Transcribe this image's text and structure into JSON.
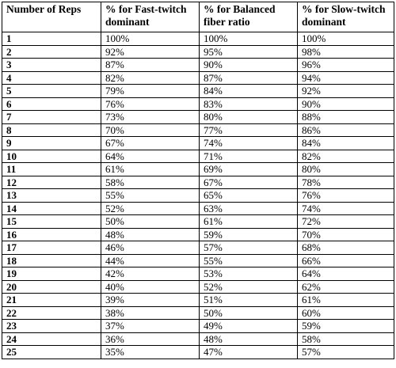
{
  "table": {
    "headers": [
      "Number of Reps",
      "% for Fast-twitch dominant",
      "% for Balanced fiber ratio",
      "% for Slow-twitch dominant"
    ],
    "rows": [
      [
        "1",
        "100%",
        "100%",
        "100%"
      ],
      [
        "2",
        "92%",
        "95%",
        "98%"
      ],
      [
        "3",
        "87%",
        "90%",
        "96%"
      ],
      [
        "4",
        "82%",
        "87%",
        "94%"
      ],
      [
        "5",
        "79%",
        "84%",
        "92%"
      ],
      [
        "6",
        "76%",
        "83%",
        "90%"
      ],
      [
        "7",
        "73%",
        "80%",
        "88%"
      ],
      [
        "8",
        "70%",
        "77%",
        "86%"
      ],
      [
        "9",
        "67%",
        "74%",
        "84%"
      ],
      [
        "10",
        "64%",
        "71%",
        "82%"
      ],
      [
        "11",
        "61%",
        "69%",
        "80%"
      ],
      [
        "12",
        "58%",
        "67%",
        "78%"
      ],
      [
        "13",
        "55%",
        "65%",
        "76%"
      ],
      [
        "14",
        "52%",
        "63%",
        "74%"
      ],
      [
        "15",
        "50%",
        "61%",
        "72%"
      ],
      [
        "16",
        "48%",
        "59%",
        "70%"
      ],
      [
        "17",
        "46%",
        "57%",
        "68%"
      ],
      [
        "18",
        "44%",
        "55%",
        "66%"
      ],
      [
        "19",
        "42%",
        "53%",
        "64%"
      ],
      [
        "20",
        "40%",
        "52%",
        "62%"
      ],
      [
        "21",
        "39%",
        "51%",
        "61%"
      ],
      [
        "22",
        "38%",
        "50%",
        "60%"
      ],
      [
        "23",
        "37%",
        "49%",
        "59%"
      ],
      [
        "24",
        "36%",
        "48%",
        "58%"
      ],
      [
        "25",
        "35%",
        "47%",
        "57%"
      ]
    ]
  }
}
